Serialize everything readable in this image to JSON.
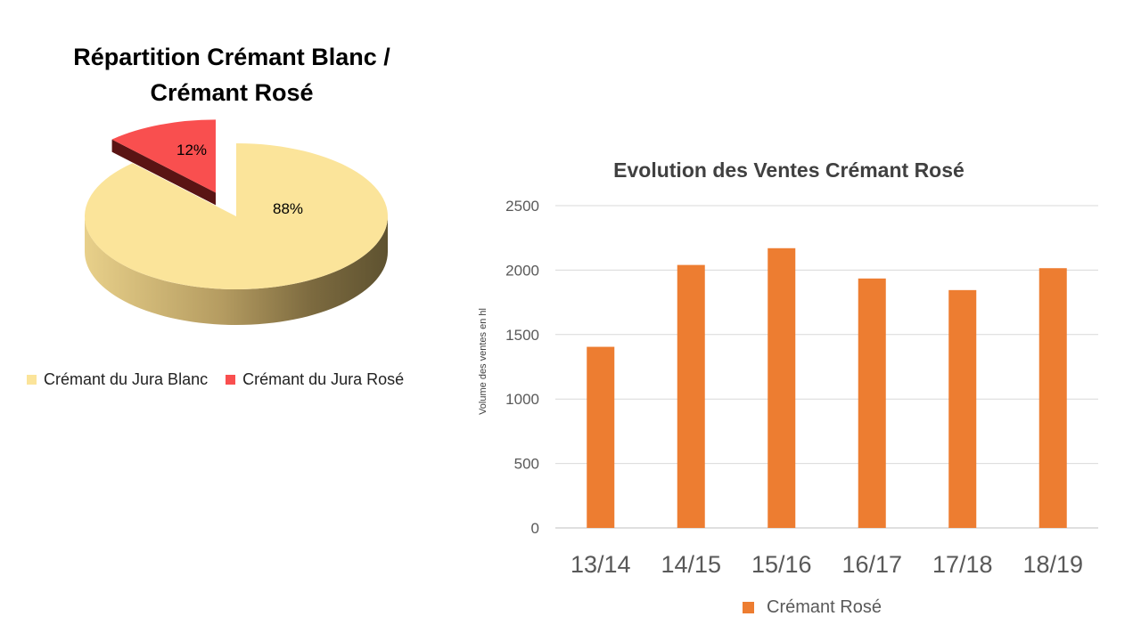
{
  "colors": {
    "blanc": "#fbe49a",
    "rose_slice": "#f94f4f",
    "bar": "#ed7d31",
    "grid": "#d9d9d9",
    "axis_text": "#595959"
  },
  "chart_data": [
    {
      "type": "pie",
      "title": "Répartition Crémant Blanc / Crémant Rosé",
      "title_line1": "Répartition Crémant Blanc /",
      "title_line2": "Crémant Rosé",
      "slices": [
        {
          "label": "Crémant du Jura Blanc",
          "value": 88,
          "display": "88%",
          "color": "#fbe49a"
        },
        {
          "label": "Crémant du Jura Rosé",
          "value": 12,
          "display": "12%",
          "color": "#f94f4f"
        }
      ],
      "legend_position": "bottom"
    },
    {
      "type": "bar",
      "title": "Evolution des Ventes Crémant Rosé",
      "categories": [
        "13/14",
        "14/15",
        "15/16",
        "16/17",
        "17/18",
        "18/19"
      ],
      "series": [
        {
          "name": "Crémant Rosé",
          "values": [
            1405,
            2040,
            2170,
            1935,
            1845,
            2015
          ],
          "color": "#ed7d31"
        }
      ],
      "xlabel": "",
      "ylabel": "Volume des ventes en hl",
      "ylim": [
        0,
        2500
      ],
      "yticks": [
        "0",
        "500",
        "1000",
        "1500",
        "2000",
        "2500"
      ],
      "grid": true,
      "legend_position": "bottom"
    }
  ]
}
